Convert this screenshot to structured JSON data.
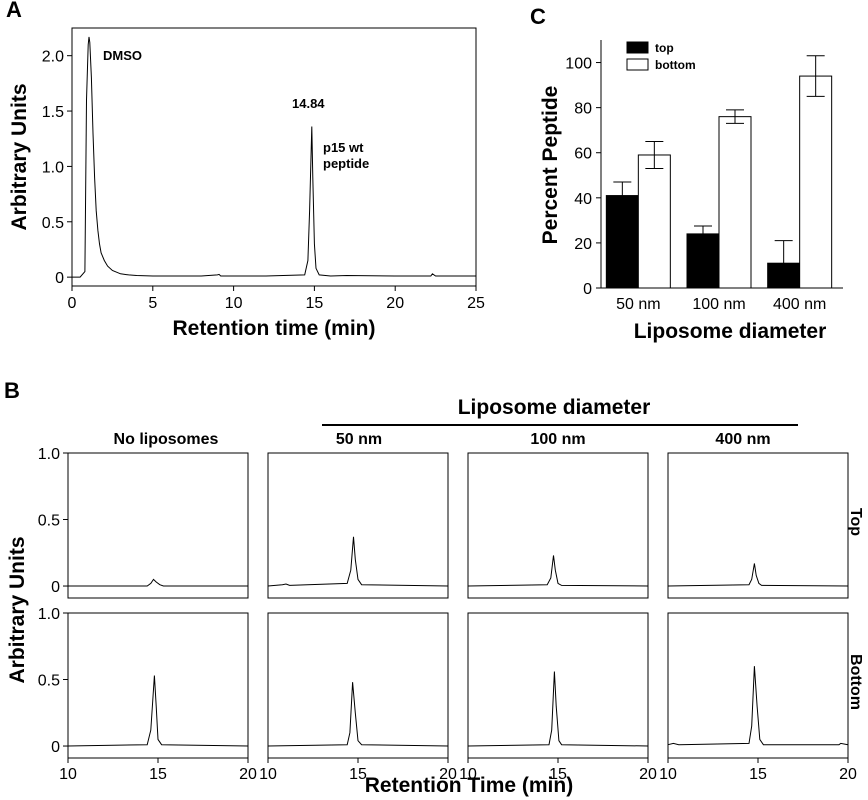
{
  "colors": {
    "ink": "#000000",
    "paper": "#ffffff",
    "bar_top": "#000000",
    "bar_bottom": "#ffffff"
  },
  "chart_data": [
    {
      "panel": "A",
      "type": "line",
      "xlabel": "Retention time (min)",
      "ylabel": "Arbitrary Units",
      "xlim": [
        0,
        25
      ],
      "ylim": [
        -0.08,
        2.25
      ],
      "xticks": [
        0,
        5,
        10,
        15,
        20,
        25
      ],
      "yticks": [
        {
          "v": 0,
          "label": "0"
        },
        {
          "v": 0.5,
          "label": "0.5"
        },
        {
          "v": 1.0,
          "label": "1.0"
        },
        {
          "v": 1.5,
          "label": "1.5"
        },
        {
          "v": 2.0,
          "label": "2.0"
        }
      ],
      "annotations": [
        "DMSO",
        "14.84",
        "p15 wt",
        "peptide"
      ],
      "series": [
        {
          "x": [
            0,
            0.5,
            0.8,
            0.9,
            1.0,
            1.05,
            1.1,
            1.2,
            1.3,
            1.4,
            1.5,
            1.6,
            1.7,
            1.8,
            2.0,
            2.2,
            2.5,
            3.0,
            3.5,
            4.0,
            5.0,
            6.0,
            8.0,
            9.0,
            9.1,
            9.2,
            12.0,
            14.4,
            14.6,
            14.7,
            14.84,
            14.9,
            15.0,
            15.1,
            15.3,
            16.0,
            17.0,
            20.0,
            22.2,
            22.3,
            22.5,
            25.0
          ],
          "y": [
            0.0,
            0.0,
            0.05,
            1.6,
            2.1,
            2.17,
            2.12,
            1.8,
            1.3,
            0.9,
            0.6,
            0.42,
            0.3,
            0.22,
            0.15,
            0.1,
            0.06,
            0.03,
            0.02,
            0.015,
            0.01,
            0.01,
            0.01,
            0.02,
            0.025,
            0.01,
            0.01,
            0.02,
            0.15,
            0.6,
            1.36,
            0.9,
            0.3,
            0.08,
            0.02,
            0.01,
            0.015,
            0.01,
            0.01,
            0.03,
            0.01,
            0.01
          ]
        }
      ]
    },
    {
      "panel": "C",
      "type": "bar",
      "xlabel": "Liposome diameter",
      "ylabel": "Percent Peptide",
      "ylim": [
        0,
        110
      ],
      "yticks": [
        0,
        20,
        40,
        60,
        80,
        100
      ],
      "categories": [
        "50 nm",
        "100 nm",
        "400 nm"
      ],
      "legend_position": "top-left",
      "series": [
        {
          "name": "top",
          "values": [
            41,
            24,
            11
          ],
          "errors": [
            6,
            3.5,
            10
          ]
        },
        {
          "name": "bottom",
          "values": [
            59,
            76,
            94
          ],
          "errors": [
            6,
            3,
            9
          ]
        }
      ]
    },
    {
      "panel": "B",
      "type": "line",
      "xlabel": "Retention Time (min)",
      "ylabel": "Arbitrary Units",
      "header": "Liposome diameter",
      "xlim": [
        10,
        20
      ],
      "ylim": [
        -0.09,
        1.0
      ],
      "xticks": [
        10,
        15,
        20
      ],
      "yticks": [
        {
          "v": 0,
          "label": "0"
        },
        {
          "v": 0.5,
          "label": "0.5"
        },
        {
          "v": 1.0,
          "label": "1.0"
        }
      ],
      "columns": [
        "No liposomes",
        "50 nm",
        "100 nm",
        "400 nm"
      ],
      "rows": [
        "Top",
        "Bottom"
      ],
      "traces": [
        [
          {
            "x": [
              10,
              14.4,
              14.6,
              14.75,
              14.9,
              15.1,
              15.3,
              20
            ],
            "y": [
              0,
              0,
              0.02,
              0.05,
              0.03,
              0.01,
              0,
              0
            ]
          },
          {
            "x": [
              10,
              10.8,
              11.0,
              11.2,
              14.4,
              14.6,
              14.75,
              14.85,
              15.0,
              15.2,
              20
            ],
            "y": [
              0,
              0.01,
              0.015,
              0.005,
              0.02,
              0.12,
              0.37,
              0.2,
              0.05,
              0.01,
              0
            ]
          },
          {
            "x": [
              10,
              14.4,
              14.6,
              14.75,
              14.85,
              15.0,
              15.2,
              20
            ],
            "y": [
              0,
              0.01,
              0.06,
              0.23,
              0.12,
              0.02,
              0.005,
              0
            ]
          },
          {
            "x": [
              10,
              14.5,
              14.65,
              14.8,
              14.9,
              15.05,
              15.2,
              20
            ],
            "y": [
              0,
              0.01,
              0.05,
              0.17,
              0.08,
              0.02,
              0.005,
              0
            ]
          }
        ],
        [
          {
            "x": [
              10,
              14.4,
              14.6,
              14.8,
              14.9,
              15.0,
              15.2,
              20
            ],
            "y": [
              0,
              0.01,
              0.12,
              0.53,
              0.3,
              0.05,
              0.01,
              0
            ]
          },
          {
            "x": [
              10,
              14.4,
              14.55,
              14.7,
              14.85,
              15.0,
              15.2,
              20
            ],
            "y": [
              0,
              0.01,
              0.1,
              0.48,
              0.25,
              0.04,
              0.01,
              0
            ]
          },
          {
            "x": [
              10,
              14.5,
              14.65,
              14.8,
              14.9,
              15.05,
              15.2,
              20
            ],
            "y": [
              0,
              0.01,
              0.12,
              0.56,
              0.3,
              0.04,
              0.01,
              0
            ]
          },
          {
            "x": [
              10,
              10.3,
              10.6,
              14.5,
              14.65,
              14.8,
              14.95,
              15.1,
              15.3,
              19.5,
              19.6,
              20
            ],
            "y": [
              0.01,
              0.02,
              0.01,
              0.02,
              0.15,
              0.6,
              0.3,
              0.05,
              0.01,
              0.01,
              0.02,
              0.01
            ]
          }
        ]
      ]
    }
  ]
}
